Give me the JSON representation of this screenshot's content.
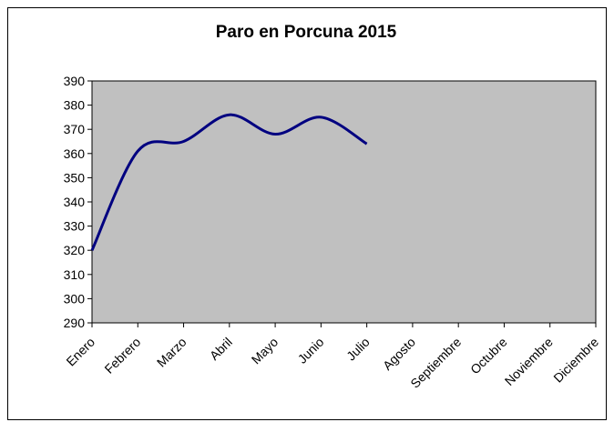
{
  "chart_data": {
    "type": "line",
    "title": "Paro en Porcuna 2015",
    "categories": [
      "Enero",
      "Febrero",
      "Marzo",
      "Abril",
      "Mayo",
      "Junio",
      "Julio",
      "Agosto",
      "Septiembre",
      "Octubre",
      "Noviembre",
      "Diciembre"
    ],
    "values": [
      320,
      361,
      365,
      376,
      368,
      375,
      364,
      null,
      null,
      null,
      null,
      null
    ],
    "color": "#000080",
    "smooth": true,
    "ylim": [
      290,
      390
    ],
    "yticks": [
      290,
      300,
      310,
      320,
      330,
      340,
      350,
      360,
      370,
      380,
      390
    ]
  }
}
